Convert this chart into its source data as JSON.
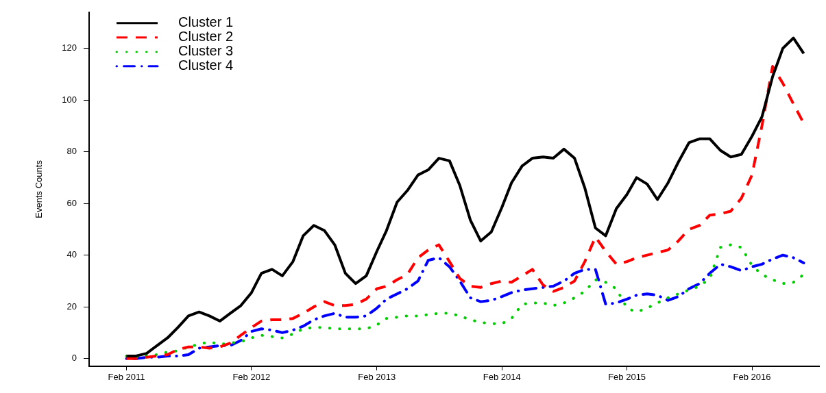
{
  "chart_data": {
    "type": "line",
    "ylabel": "Events Counts",
    "x": [
      "2011-02",
      "2011-03",
      "2011-04",
      "2011-05",
      "2011-06",
      "2011-07",
      "2011-08",
      "2011-09",
      "2011-10",
      "2011-11",
      "2011-12",
      "2012-01",
      "2012-02",
      "2012-03",
      "2012-04",
      "2012-05",
      "2012-06",
      "2012-07",
      "2012-08",
      "2012-09",
      "2012-10",
      "2012-11",
      "2012-12",
      "2013-01",
      "2013-02",
      "2013-03",
      "2013-04",
      "2013-05",
      "2013-06",
      "2013-07",
      "2013-08",
      "2013-09",
      "2013-10",
      "2013-11",
      "2013-12",
      "2014-01",
      "2014-02",
      "2014-03",
      "2014-04",
      "2014-05",
      "2014-06",
      "2014-07",
      "2014-08",
      "2014-09",
      "2014-10",
      "2014-11",
      "2014-12",
      "2015-01",
      "2015-02",
      "2015-03",
      "2015-04",
      "2015-05",
      "2015-06",
      "2015-07",
      "2015-08",
      "2015-09",
      "2015-10",
      "2015-11",
      "2015-12",
      "2016-01",
      "2016-02",
      "2016-03",
      "2016-04",
      "2016-05",
      "2016-06",
      "2016-07"
    ],
    "series": [
      {
        "name": "Cluster 1",
        "color": "#000000",
        "line_style": "solid",
        "values": [
          1,
          1,
          2,
          5,
          8,
          12,
          16.5,
          18,
          16.5,
          14.5,
          17.5,
          20.5,
          25.5,
          33,
          34.5,
          32,
          37.5,
          47.5,
          51.5,
          49.5,
          44,
          33,
          29,
          32,
          41.5,
          49.5,
          60.5,
          65,
          71,
          73,
          77.5,
          76.5,
          67,
          53.5,
          45.5,
          49,
          58.5,
          68,
          74.5,
          77.5,
          78,
          77.5,
          81,
          77.5,
          66,
          50.5,
          47.5,
          58,
          63.5,
          70,
          67.5,
          61.5,
          68,
          76,
          83.5,
          85,
          85,
          80.5,
          78,
          79,
          86,
          93.5,
          109,
          120,
          124,
          118
        ]
      },
      {
        "name": "Cluster 2",
        "color": "#ff0000",
        "line_style": "dashed",
        "values": [
          0,
          0,
          0.5,
          1,
          1.5,
          3.5,
          4.5,
          4.5,
          4,
          4.5,
          6,
          9,
          12,
          14.5,
          15,
          15,
          15.5,
          17.5,
          20,
          22,
          20.5,
          20.5,
          21,
          23,
          27,
          28,
          30.5,
          32.5,
          39,
          42,
          44,
          37.5,
          31,
          28,
          27.5,
          29,
          30,
          29.5,
          32,
          34.5,
          28.5,
          26,
          27.5,
          30,
          37.5,
          47,
          41.5,
          36.5,
          37.5,
          39,
          40,
          41,
          42,
          45.5,
          50,
          51.5,
          55.5,
          56,
          57,
          62,
          71,
          90,
          113,
          106.5,
          98.5,
          91
        ]
      },
      {
        "name": "Cluster 3",
        "color": "#00cc00",
        "line_style": "dotted",
        "values": [
          1,
          0.5,
          1,
          1.5,
          2.5,
          3,
          4.5,
          5.5,
          6.5,
          5.5,
          6,
          6.5,
          8,
          9,
          8.5,
          8,
          9.5,
          11.5,
          12,
          12,
          11.5,
          11.5,
          11.5,
          11.5,
          13,
          15.5,
          16,
          16.5,
          16.5,
          17,
          17.5,
          17.5,
          16.5,
          15,
          14,
          13.5,
          13.5,
          15.5,
          21,
          21.5,
          21.5,
          20.5,
          21.5,
          23.5,
          26,
          30.5,
          29.5,
          27,
          19.5,
          18,
          19.5,
          21.5,
          23.5,
          25,
          26.5,
          28,
          31,
          43,
          44,
          43,
          36,
          32.5,
          30.5,
          29,
          29.5,
          32.5
        ]
      },
      {
        "name": "Cluster 4",
        "color": "#0000ff",
        "line_style": "dashdot",
        "values": [
          0,
          0,
          0.5,
          0.5,
          1,
          1,
          1.5,
          4,
          4.5,
          5,
          5,
          7,
          10.5,
          11.5,
          11,
          10,
          11,
          12.5,
          15,
          16.5,
          17.5,
          16,
          16,
          16.5,
          19.5,
          23,
          25,
          27,
          30,
          38,
          39,
          35.5,
          30,
          23.5,
          22,
          22.5,
          24,
          25.5,
          26.5,
          27,
          27.5,
          28,
          30,
          33,
          34.5,
          34.5,
          21,
          21.5,
          23,
          24.5,
          25,
          24.5,
          22.5,
          24,
          27,
          29,
          33,
          36.5,
          35.5,
          34,
          35.5,
          36.5,
          38.5,
          40,
          39,
          37
        ]
      }
    ],
    "xlim": [
      "2010-10-15",
      "2016-08-15"
    ],
    "xticks": [
      {
        "value": "2011-02",
        "label": "Feb 2011"
      },
      {
        "value": "2012-02",
        "label": "Feb 2012"
      },
      {
        "value": "2013-02",
        "label": "Feb 2013"
      },
      {
        "value": "2014-02",
        "label": "Feb 2014"
      },
      {
        "value": "2015-02",
        "label": "Feb 2015"
      },
      {
        "value": "2016-02",
        "label": "Feb 2016"
      }
    ],
    "ylim": [
      -3,
      134
    ],
    "yticks": [
      0,
      20,
      40,
      60,
      80,
      100,
      120
    ],
    "grid": false,
    "legend": "top left"
  }
}
